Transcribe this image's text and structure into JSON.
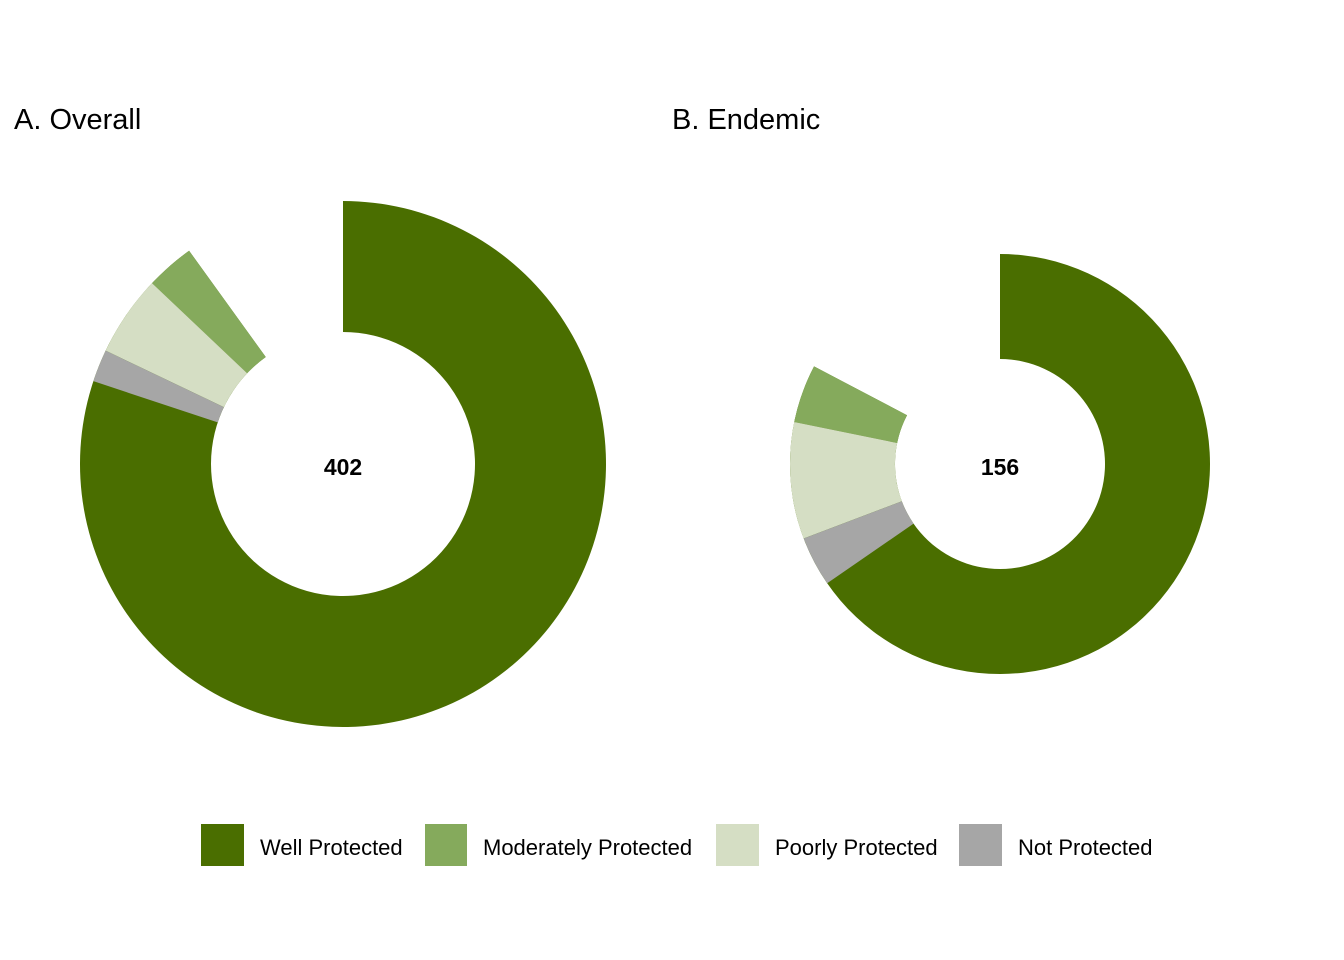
{
  "chart_data": [
    {
      "type": "donut",
      "title": "A. Overall",
      "center_label": "402",
      "total": 402,
      "categories": [
        "Well Protected",
        "Moderately Protected",
        "Poorly Protected",
        "Not Protected"
      ],
      "values": [
        362,
        12,
        20,
        8
      ]
    },
    {
      "type": "donut",
      "title": "B. Endemic",
      "center_label": "156",
      "total": 156,
      "categories": [
        "Well Protected",
        "Moderately Protected",
        "Poorly Protected",
        "Not Protected"
      ],
      "values": [
        129,
        7,
        14,
        6
      ]
    }
  ],
  "legend": {
    "placement": "bottom",
    "items": [
      {
        "label": "Well Protected",
        "color": "#4a6e00"
      },
      {
        "label": "Moderately Protected",
        "color": "#85aa5c"
      },
      {
        "label": "Poorly Protected",
        "color": "#d5dec4"
      },
      {
        "label": "Not Protected",
        "color": "#a6a6a6"
      }
    ]
  }
}
